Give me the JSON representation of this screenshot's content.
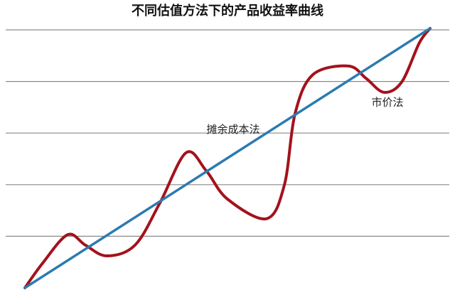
{
  "chart_data": {
    "type": "line",
    "title": "不同估值方法下的产品收益率曲线",
    "ylim": [
      0,
      5
    ],
    "yticks": [
      1,
      2,
      3,
      4,
      5
    ],
    "grid": true,
    "xlim": [
      0,
      20
    ],
    "series": [
      {
        "name": "摊余成本法",
        "color": "#2b7bb0",
        "x": [
          0,
          20
        ],
        "values": [
          0,
          5.03
        ]
      },
      {
        "name": "市价法",
        "color": "#a3121c",
        "x": [
          0,
          0.88,
          2.11,
          2.98,
          4.04,
          5.44,
          6.67,
          7.96,
          8.95,
          10.0,
          11.93,
          12.81,
          13.33,
          14.21,
          15.96,
          16.84,
          17.72,
          18.6,
          19.47,
          20
        ],
        "values": [
          0,
          0.48,
          1.03,
          0.83,
          0.62,
          0.83,
          1.65,
          2.62,
          2.27,
          1.72,
          1.34,
          2.0,
          3.37,
          4.13,
          4.3,
          4.06,
          3.79,
          3.99,
          4.75,
          5.03
        ]
      }
    ]
  }
}
